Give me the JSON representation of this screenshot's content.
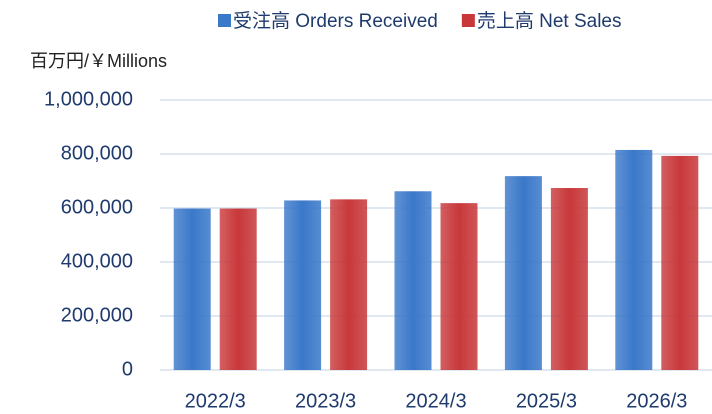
{
  "chart_data": {
    "type": "bar",
    "ylabel": "百万円/￥Millions",
    "categories": [
      "2022/3",
      "2023/3",
      "2024/3",
      "2025/3",
      "2026/3"
    ],
    "series": [
      {
        "name": "受注高 Orders Received",
        "color": "#3a78c9",
        "values": [
          598000,
          628000,
          662000,
          718000,
          815000
        ]
      },
      {
        "name": "売上高 Net Sales",
        "color": "#c8383a",
        "values": [
          598000,
          632000,
          618000,
          674000,
          793000
        ]
      }
    ],
    "ylim": [
      0,
      1000000
    ],
    "yticks": [
      0,
      {
        "value": 200000,
        "label": "200,000"
      },
      {
        "value": 400000,
        "label": "400,000"
      },
      {
        "value": 600000,
        "label": "600,000"
      },
      {
        "value": 800000,
        "label": "800,000"
      },
      {
        "value": 1000000,
        "label": "1,000,000"
      }
    ],
    "grid": true
  }
}
